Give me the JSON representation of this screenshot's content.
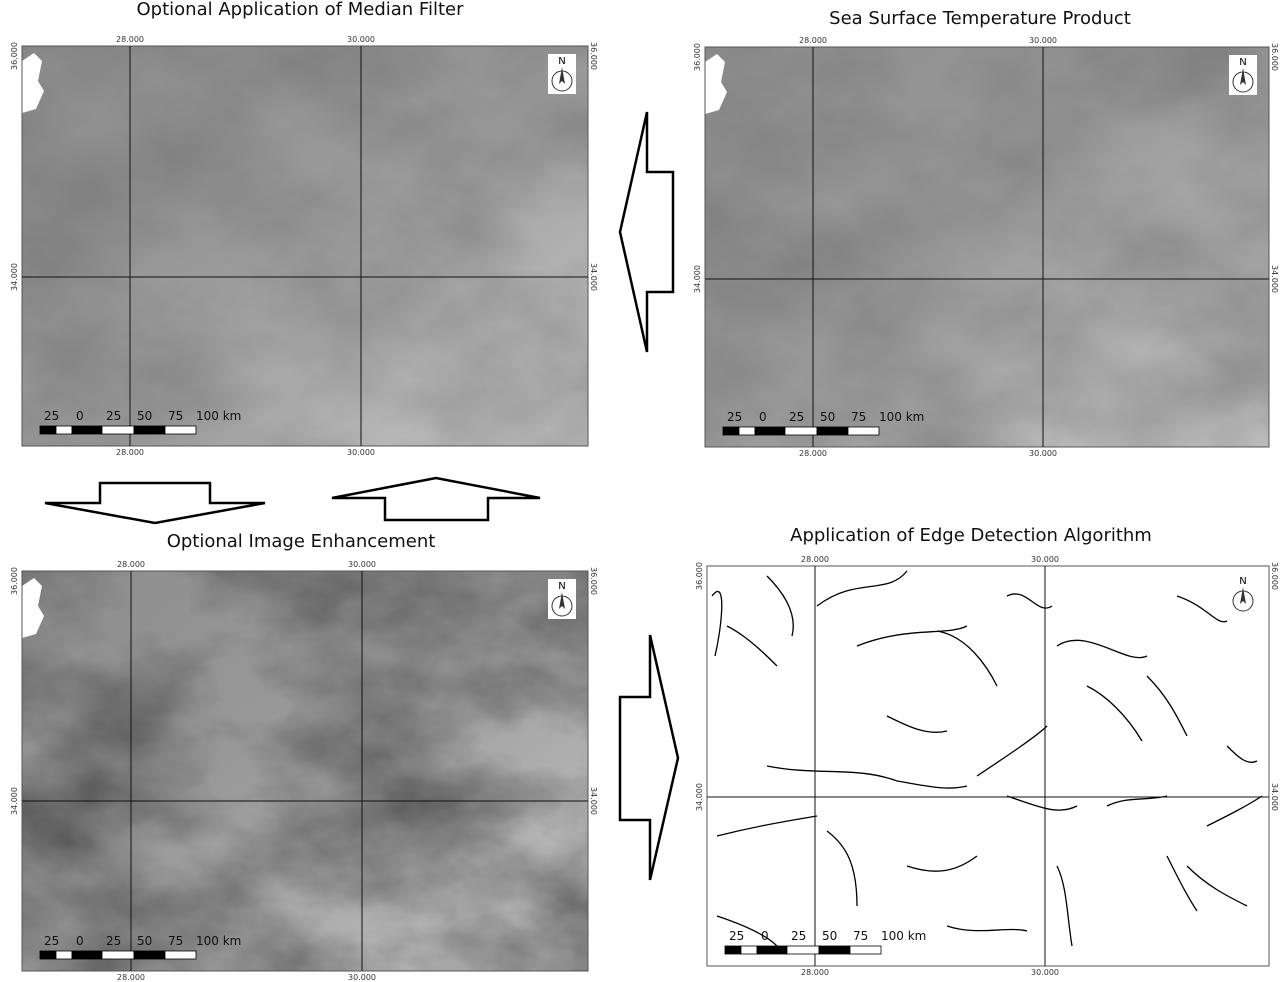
{
  "panels": [
    {
      "title": "Optional Application of Median Filter"
    },
    {
      "title": "Sea Surface Temperature Product"
    },
    {
      "title": "Optional Image Enhancement"
    },
    {
      "title": "Application of Edge Detection Algorithm"
    }
  ],
  "x_labels": [
    "28.000",
    "30.000"
  ],
  "y_labels": [
    "36.000",
    "34.000"
  ],
  "scale_labels": [
    "25",
    "0",
    "25",
    "50",
    "75",
    "100 km"
  ],
  "north": "N"
}
